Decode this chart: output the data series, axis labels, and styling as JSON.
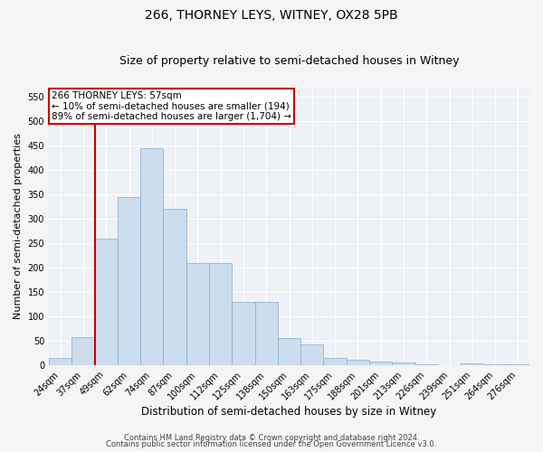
{
  "title": "266, THORNEY LEYS, WITNEY, OX28 5PB",
  "subtitle": "Size of property relative to semi-detached houses in Witney",
  "xlabel": "Distribution of semi-detached houses by size in Witney",
  "ylabel": "Number of semi-detached properties",
  "footer1": "Contains HM Land Registry data © Crown copyright and database right 2024.",
  "footer2": "Contains public sector information licensed under the Open Government Licence v3.0.",
  "categories": [
    "24sqm",
    "37sqm",
    "49sqm",
    "62sqm",
    "74sqm",
    "87sqm",
    "100sqm",
    "112sqm",
    "125sqm",
    "138sqm",
    "150sqm",
    "163sqm",
    "175sqm",
    "188sqm",
    "201sqm",
    "213sqm",
    "226sqm",
    "239sqm",
    "251sqm",
    "264sqm",
    "276sqm"
  ],
  "values": [
    15,
    57,
    260,
    345,
    445,
    320,
    210,
    210,
    130,
    130,
    55,
    42,
    15,
    12,
    8,
    5,
    3,
    0,
    4,
    3,
    3
  ],
  "bar_color": "#ccdded",
  "bar_edge_color": "#88aacc",
  "vline_color": "#cc0000",
  "vline_x": 1.5,
  "annotation_title": "266 THORNEY LEYS: 57sqm",
  "annotation_line1": "← 10% of semi-detached houses are smaller (194)",
  "annotation_line2": "89% of semi-detached houses are larger (1,704) →",
  "annotation_box_color": "#ffffff",
  "annotation_box_edge": "#cc0000",
  "ylim": [
    0,
    570
  ],
  "yticks": [
    0,
    50,
    100,
    150,
    200,
    250,
    300,
    350,
    400,
    450,
    500,
    550
  ],
  "plot_bg_color": "#eef2f7",
  "fig_bg_color": "#f5f5f5",
  "grid_color": "#ffffff",
  "title_fontsize": 10,
  "subtitle_fontsize": 9,
  "xlabel_fontsize": 8.5,
  "ylabel_fontsize": 8,
  "tick_fontsize": 7,
  "annotation_fontsize": 7.5,
  "footer_fontsize": 6
}
